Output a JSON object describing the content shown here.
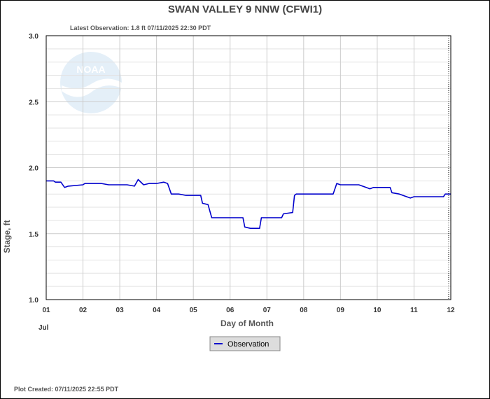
{
  "chart_data": {
    "type": "line",
    "title": "SWAN VALLEY 9 NNW  (CFWI1)",
    "subtitle": "Latest Observation: 1.8 ft 07/11/2025 22:30 PDT",
    "xlabel": "Day of Month",
    "ylabel": "Stage, ft",
    "month_label": "Jul",
    "xlim": [
      1,
      12
    ],
    "ylim": [
      1.0,
      3.0
    ],
    "x_ticks": [
      "01",
      "02",
      "03",
      "04",
      "05",
      "06",
      "07",
      "08",
      "09",
      "10",
      "11",
      "12"
    ],
    "y_ticks": [
      "1.0",
      "1.5",
      "2.0",
      "2.5",
      "3.0"
    ],
    "grid": true,
    "legend_position": "bottom-center",
    "footer": "Plot Created: 07/11/2025 22:55 PDT",
    "series": [
      {
        "name": "Observation",
        "color": "#0000cc",
        "points": [
          [
            1.0,
            1.9
          ],
          [
            1.2,
            1.9
          ],
          [
            1.25,
            1.89
          ],
          [
            1.4,
            1.89
          ],
          [
            1.5,
            1.85
          ],
          [
            1.6,
            1.86
          ],
          [
            2.0,
            1.87
          ],
          [
            2.05,
            1.88
          ],
          [
            2.3,
            1.88
          ],
          [
            2.5,
            1.88
          ],
          [
            2.7,
            1.87
          ],
          [
            2.9,
            1.87
          ],
          [
            3.0,
            1.87
          ],
          [
            3.2,
            1.87
          ],
          [
            3.4,
            1.86
          ],
          [
            3.5,
            1.91
          ],
          [
            3.65,
            1.87
          ],
          [
            3.8,
            1.88
          ],
          [
            4.0,
            1.88
          ],
          [
            4.2,
            1.89
          ],
          [
            4.3,
            1.88
          ],
          [
            4.4,
            1.8
          ],
          [
            4.6,
            1.8
          ],
          [
            4.8,
            1.79
          ],
          [
            5.0,
            1.79
          ],
          [
            5.2,
            1.79
          ],
          [
            5.25,
            1.73
          ],
          [
            5.4,
            1.72
          ],
          [
            5.5,
            1.62
          ],
          [
            5.8,
            1.62
          ],
          [
            6.0,
            1.62
          ],
          [
            6.35,
            1.62
          ],
          [
            6.4,
            1.55
          ],
          [
            6.55,
            1.54
          ],
          [
            6.8,
            1.54
          ],
          [
            6.85,
            1.62
          ],
          [
            7.0,
            1.62
          ],
          [
            7.4,
            1.62
          ],
          [
            7.45,
            1.65
          ],
          [
            7.7,
            1.66
          ],
          [
            7.75,
            1.79
          ],
          [
            7.8,
            1.8
          ],
          [
            8.0,
            1.8
          ],
          [
            8.5,
            1.8
          ],
          [
            8.8,
            1.8
          ],
          [
            8.9,
            1.88
          ],
          [
            9.0,
            1.87
          ],
          [
            9.5,
            1.87
          ],
          [
            9.7,
            1.85
          ],
          [
            9.8,
            1.84
          ],
          [
            9.9,
            1.85
          ],
          [
            10.0,
            1.85
          ],
          [
            10.2,
            1.85
          ],
          [
            10.35,
            1.85
          ],
          [
            10.4,
            1.81
          ],
          [
            10.6,
            1.8
          ],
          [
            10.8,
            1.78
          ],
          [
            10.9,
            1.77
          ],
          [
            11.0,
            1.78
          ],
          [
            11.5,
            1.78
          ],
          [
            11.8,
            1.78
          ],
          [
            11.85,
            1.8
          ],
          [
            12.0,
            1.8
          ]
        ]
      }
    ]
  }
}
